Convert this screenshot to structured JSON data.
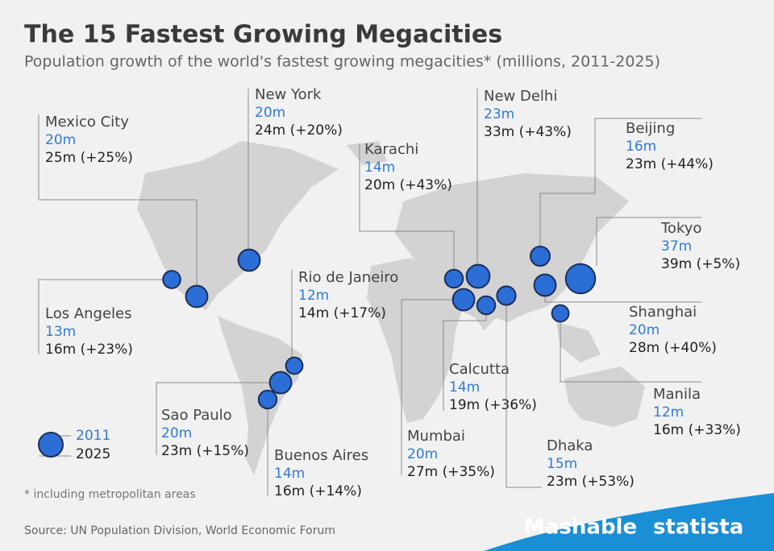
{
  "title": "The 15 Fastest Growing Megacities",
  "subtitle": "Population growth of the world's fastest growing megacities* (millions, 2011-2025)",
  "cities": [
    {
      "name": "Mexico City",
      "pop_2011": 20,
      "pop_2011_label": "20m",
      "pop_2025_label": "25m (+25%)"
    },
    {
      "name": "New York",
      "pop_2011": 20,
      "pop_2011_label": "20m",
      "pop_2025_label": "24m (+20%)"
    },
    {
      "name": "Los Angeles",
      "pop_2011": 13,
      "pop_2011_label": "13m",
      "pop_2025_label": "16m (+23%)"
    },
    {
      "name": "Rio de Janeiro",
      "pop_2011": 12,
      "pop_2011_label": "12m",
      "pop_2025_label": "14m (+17%)"
    },
    {
      "name": "Sao Paulo",
      "pop_2011": 20,
      "pop_2011_label": "20m",
      "pop_2025_label": "23m (+15%)"
    },
    {
      "name": "Buenos Aires",
      "pop_2011": 14,
      "pop_2011_label": "14m",
      "pop_2025_label": "16m (+14%)"
    },
    {
      "name": "Karachi",
      "pop_2011": 14,
      "pop_2011_label": "14m",
      "pop_2025_label": "20m (+43%)"
    },
    {
      "name": "New Delhi",
      "pop_2011": 23,
      "pop_2011_label": "23m",
      "pop_2025_label": "33m (+43%)"
    },
    {
      "name": "Mumbai",
      "pop_2011": 20,
      "pop_2011_label": "20m",
      "pop_2025_label": "27m (+35%)"
    },
    {
      "name": "Calcutta",
      "pop_2011": 14,
      "pop_2011_label": "14m",
      "pop_2025_label": "19m (+36%)"
    },
    {
      "name": "Dhaka",
      "pop_2011": 15,
      "pop_2011_label": "15m",
      "pop_2025_label": "23m (+53%)"
    },
    {
      "name": "Beijing",
      "pop_2011": 16,
      "pop_2011_label": "16m",
      "pop_2025_label": "23m (+44%)"
    },
    {
      "name": "Tokyo",
      "pop_2011": 37,
      "pop_2011_label": "37m",
      "pop_2025_label": "39m (+5%)"
    },
    {
      "name": "Shanghai",
      "pop_2011": 20,
      "pop_2011_label": "20m",
      "pop_2025_label": "28m (+40%)"
    },
    {
      "name": "Manila",
      "pop_2011": 12,
      "pop_2011_label": "12m",
      "pop_2025_label": "16m (+33%)"
    }
  ],
  "legend": {
    "first": "2011",
    "second": "2025"
  },
  "footnote": "* including metropolitan areas",
  "source": "Source: UN Population Division, World Economic Forum",
  "brands": {
    "mashable": "Mashable",
    "statista": "statista"
  }
}
